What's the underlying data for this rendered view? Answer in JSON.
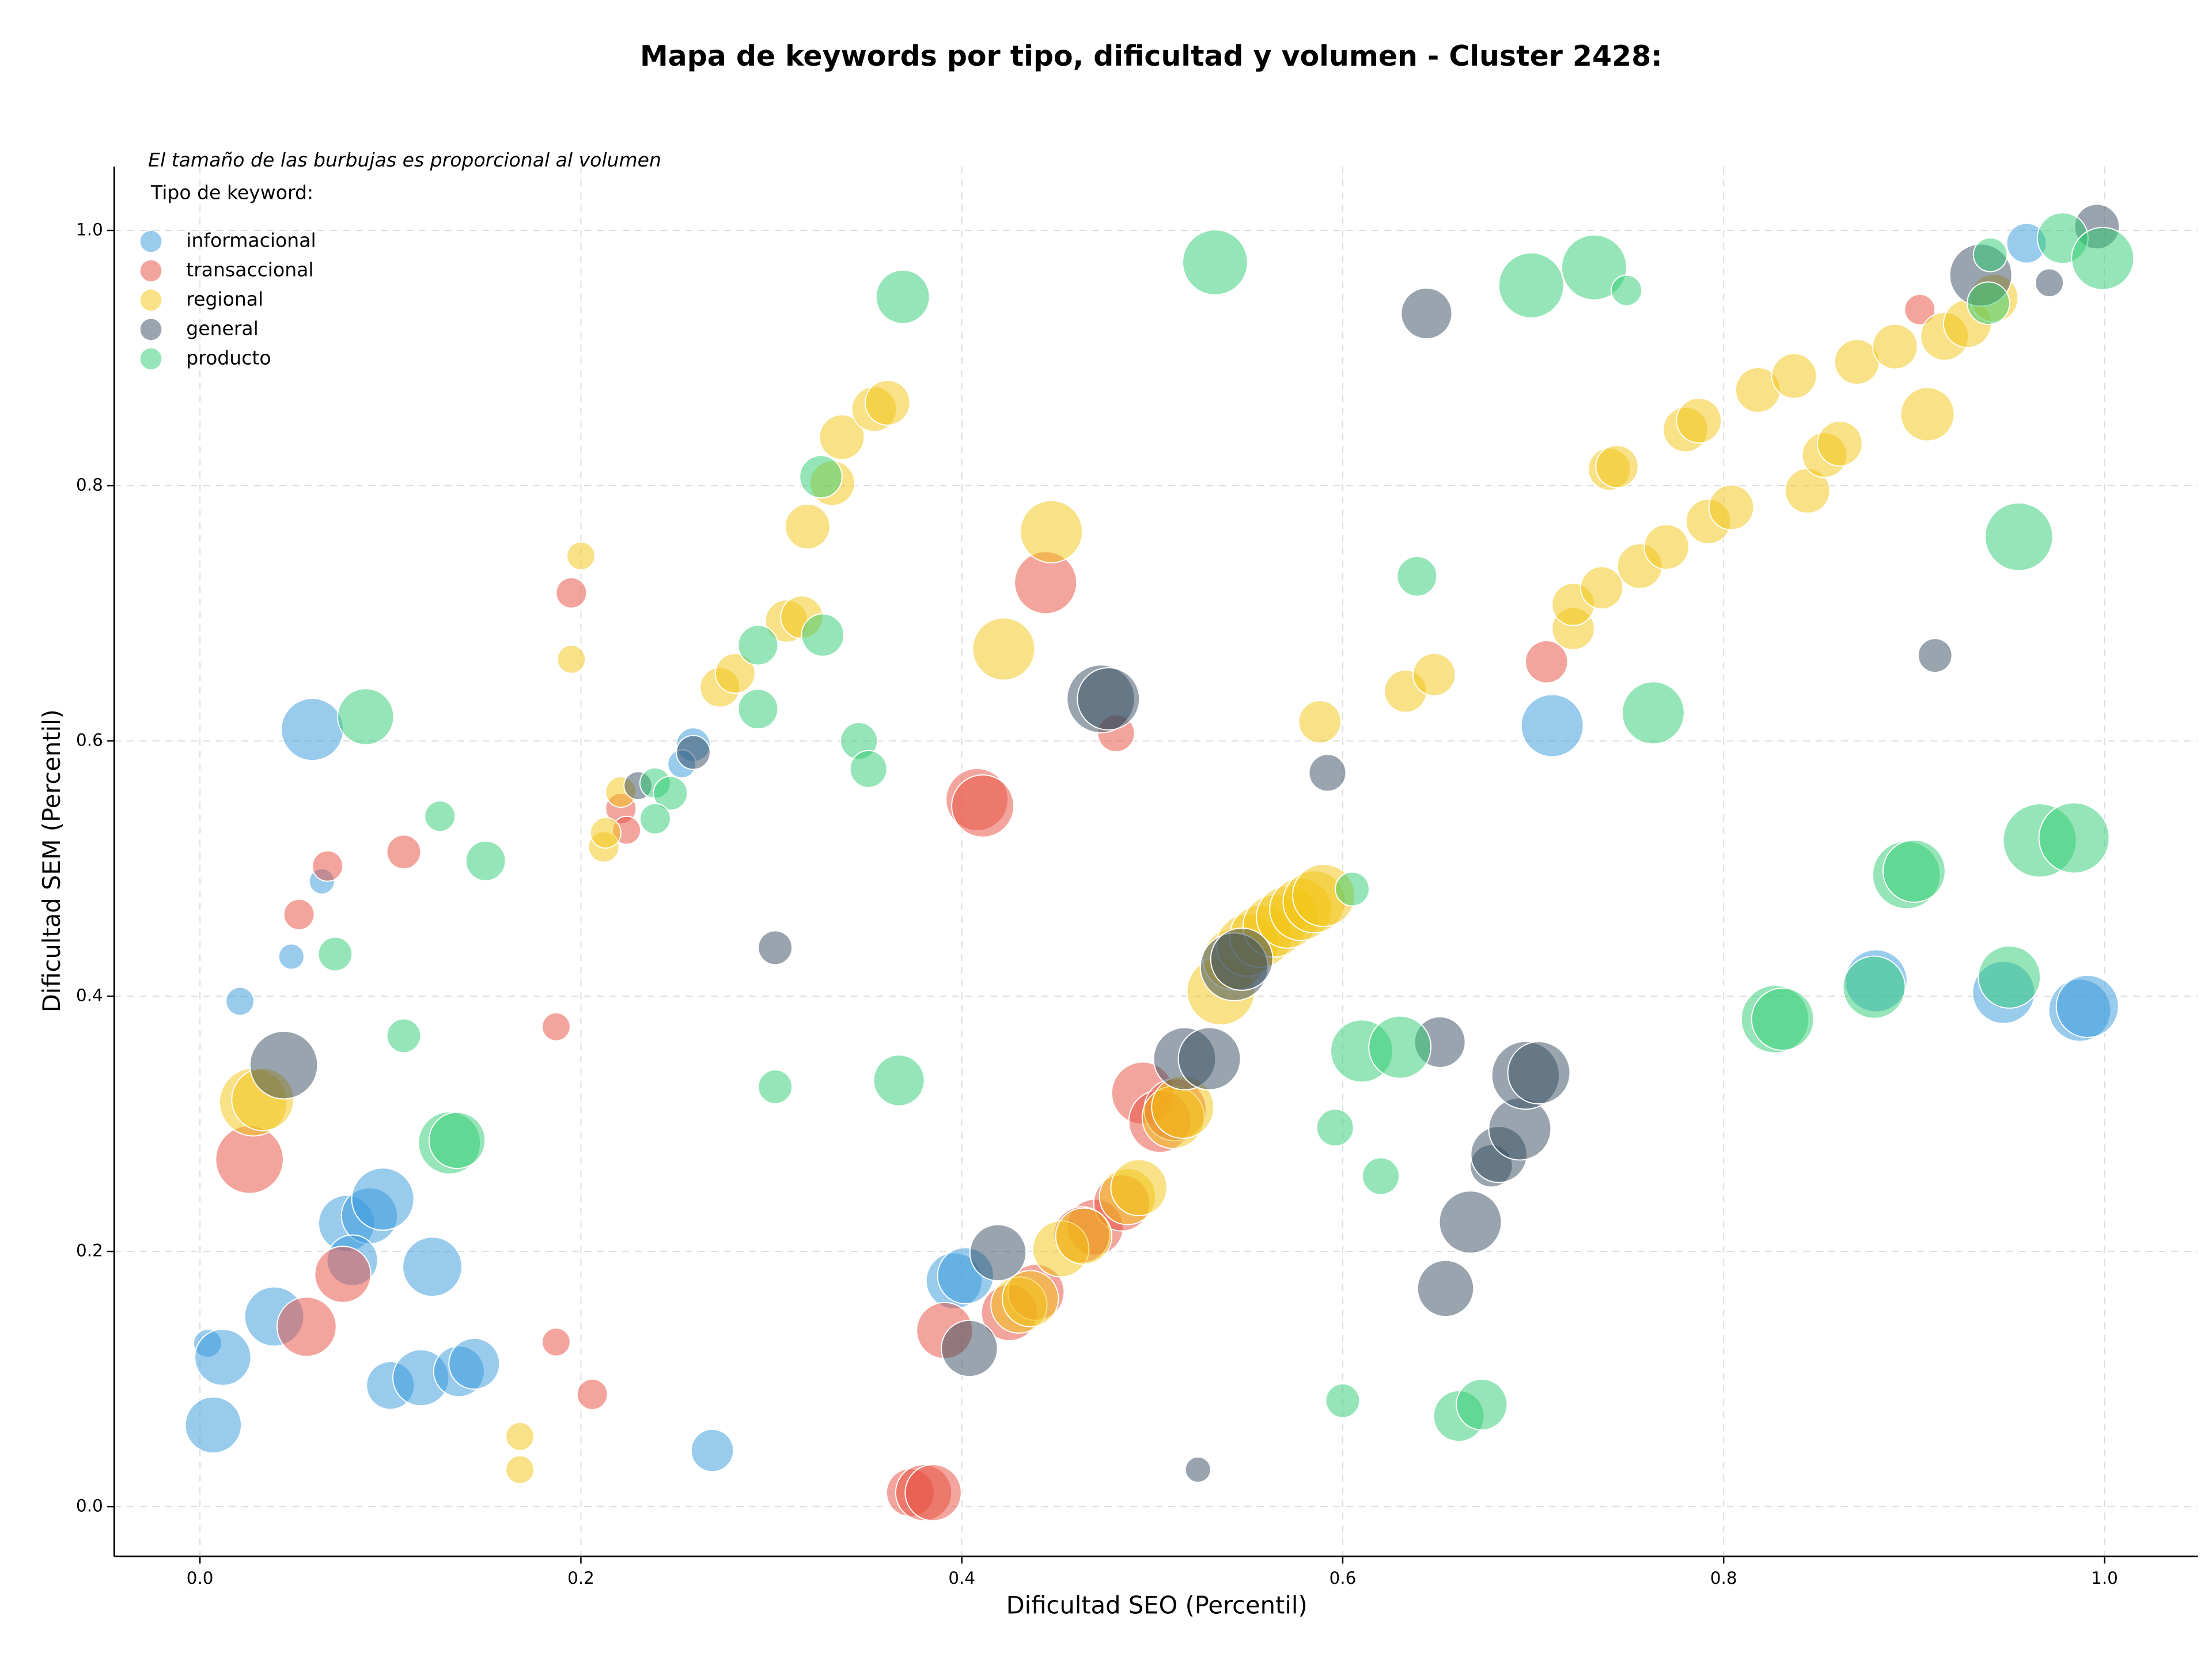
{
  "chart_data": {
    "type": "scatter",
    "title": "Mapa de keywords por tipo, dificultad y volumen - Cluster 2428:",
    "xlabel": "Dificultad SEO (Percentil)",
    "ylabel": "Dificultad SEM (Percentil)",
    "note": "El tamaño de las burbujas es proporcional al volumen",
    "legend_title": "Tipo de keyword:",
    "legend": "upper left",
    "grid": true,
    "xlim": [
      -0.045,
      1.049
    ],
    "ylim": [
      -0.039,
      1.05
    ],
    "xticks": [
      {
        "value": 0,
        "label": "0.0"
      },
      0.2,
      0.4,
      0.6,
      0.8,
      {
        "value": 1,
        "label": "1.0"
      }
    ],
    "yticks": [
      {
        "value": 0,
        "label": "0.0"
      },
      0.2,
      0.4,
      0.6,
      0.8,
      {
        "value": 1,
        "label": "1.0"
      }
    ],
    "series": [
      {
        "name": "informacional",
        "color": "#3498db",
        "x": [
          0.059,
          0.064,
          0.048,
          0.021,
          0.007,
          0.004,
          0.012,
          0.039,
          0.077,
          0.089,
          0.096,
          0.08,
          0.122,
          0.1,
          0.116,
          0.136,
          0.144,
          0.269,
          0.259,
          0.253,
          0.396,
          0.402,
          0.71,
          0.88,
          0.947,
          0.987,
          0.991,
          0.959
        ],
        "values": [
          0.609,
          0.49,
          0.431,
          0.396,
          0.064,
          0.128,
          0.117,
          0.149,
          0.222,
          0.228,
          0.241,
          0.193,
          0.188,
          0.095,
          0.101,
          0.106,
          0.112,
          0.044,
          0.597,
          0.582,
          0.177,
          0.181,
          0.612,
          0.412,
          0.403,
          0.389,
          0.392,
          0.99
        ],
        "sizes": [
          54,
          9,
          9,
          11,
          44,
          11,
          44,
          49,
          44,
          44,
          54,
          36,
          49,
          32,
          44,
          36,
          36,
          25,
          16,
          11,
          44,
          44,
          54,
          54,
          54,
          54,
          54,
          22
        ]
      },
      {
        "name": "transaccional",
        "color": "#e74c3c",
        "x": [
          0.026,
          0.056,
          0.075,
          0.052,
          0.067,
          0.107,
          0.195,
          0.187,
          0.187,
          0.206,
          0.221,
          0.224,
          0.408,
          0.411,
          0.444,
          0.481,
          0.707,
          0.903,
          0.373,
          0.38,
          0.385,
          0.391,
          0.425,
          0.439,
          0.47,
          0.484,
          0.495,
          0.504,
          0.512,
          0.463
        ],
        "values": [
          0.272,
          0.141,
          0.182,
          0.464,
          0.502,
          0.513,
          0.716,
          0.376,
          0.129,
          0.088,
          0.547,
          0.53,
          0.554,
          0.549,
          0.724,
          0.606,
          0.662,
          0.938,
          0.011,
          0.011,
          0.011,
          0.138,
          0.152,
          0.168,
          0.219,
          0.238,
          0.324,
          0.302,
          0.311,
          0.213
        ],
        "sizes": [
          64,
          49,
          44,
          13,
          13,
          16,
          13,
          11,
          11,
          13,
          13,
          11,
          54,
          54,
          54,
          19,
          25,
          13,
          32,
          44,
          44,
          44,
          44,
          44,
          44,
          44,
          54,
          54,
          54,
          44
        ]
      },
      {
        "name": "regional",
        "color": "#f1c40f",
        "x": [
          0.028,
          0.033,
          0.168,
          0.168,
          0.195,
          0.2,
          0.212,
          0.213,
          0.221,
          0.273,
          0.281,
          0.308,
          0.316,
          0.319,
          0.332,
          0.337,
          0.354,
          0.361,
          0.422,
          0.447,
          0.43,
          0.436,
          0.452,
          0.464,
          0.487,
          0.493,
          0.511,
          0.516,
          0.536,
          0.543,
          0.55,
          0.557,
          0.564,
          0.571,
          0.578,
          0.585,
          0.59,
          0.588,
          0.633,
          0.648,
          0.721,
          0.721,
          0.736,
          0.74,
          0.744,
          0.756,
          0.77,
          0.78,
          0.787,
          0.792,
          0.804,
          0.818,
          0.837,
          0.844,
          0.853,
          0.861,
          0.87,
          0.89,
          0.907,
          0.916,
          0.928,
          0.942
        ],
        "values": [
          0.317,
          0.319,
          0.055,
          0.029,
          0.664,
          0.745,
          0.517,
          0.528,
          0.56,
          0.642,
          0.653,
          0.694,
          0.697,
          0.768,
          0.802,
          0.838,
          0.86,
          0.865,
          0.672,
          0.764,
          0.158,
          0.163,
          0.202,
          0.212,
          0.243,
          0.25,
          0.305,
          0.313,
          0.404,
          0.429,
          0.44,
          0.447,
          0.455,
          0.462,
          0.468,
          0.474,
          0.479,
          0.615,
          0.639,
          0.652,
          0.688,
          0.707,
          0.72,
          0.813,
          0.815,
          0.737,
          0.752,
          0.844,
          0.851,
          0.772,
          0.783,
          0.875,
          0.886,
          0.796,
          0.824,
          0.833,
          0.897,
          0.909,
          0.856,
          0.917,
          0.927,
          0.947
        ],
        "sizes": [
          64,
          54,
          11,
          11,
          11,
          11,
          13,
          13,
          13,
          22,
          22,
          25,
          25,
          28,
          28,
          28,
          28,
          28,
          54,
          54,
          44,
          44,
          44,
          44,
          44,
          44,
          54,
          54,
          64,
          54,
          54,
          54,
          54,
          54,
          54,
          54,
          54,
          25,
          25,
          25,
          25,
          25,
          25,
          25,
          25,
          28,
          28,
          28,
          28,
          28,
          28,
          28,
          28,
          28,
          28,
          28,
          28,
          28,
          40,
          32,
          32,
          32
        ]
      },
      {
        "name": "general",
        "color": "#34495e",
        "x": [
          0.044,
          0.259,
          0.23,
          0.302,
          0.419,
          0.404,
          0.473,
          0.477,
          0.524,
          0.517,
          0.53,
          0.543,
          0.547,
          0.592,
          0.644,
          0.651,
          0.654,
          0.667,
          0.678,
          0.682,
          0.693,
          0.696,
          0.703,
          0.911,
          0.935,
          0.971,
          0.996
        ],
        "values": [
          0.346,
          0.591,
          0.565,
          0.438,
          0.199,
          0.124,
          0.633,
          0.633,
          0.029,
          0.351,
          0.351,
          0.423,
          0.429,
          0.575,
          0.935,
          0.364,
          0.171,
          0.223,
          0.267,
          0.276,
          0.296,
          0.338,
          0.34,
          0.667,
          0.965,
          0.959,
          1.003
        ],
        "sizes": [
          64,
          16,
          11,
          16,
          44,
          44,
          64,
          54,
          9,
          54,
          54,
          64,
          54,
          19,
          36,
          36,
          44,
          54,
          25,
          44,
          54,
          64,
          54,
          16,
          54,
          11,
          28
        ]
      },
      {
        "name": "producto",
        "color": "#2ecc71",
        "x": [
          0.087,
          0.071,
          0.107,
          0.126,
          0.15,
          0.131,
          0.135,
          0.239,
          0.247,
          0.239,
          0.293,
          0.293,
          0.302,
          0.326,
          0.327,
          0.346,
          0.351,
          0.369,
          0.367,
          0.533,
          0.6,
          0.596,
          0.605,
          0.61,
          0.63,
          0.62,
          0.639,
          0.661,
          0.673,
          0.699,
          0.732,
          0.749,
          0.763,
          0.827,
          0.831,
          0.879,
          0.896,
          0.9,
          0.95,
          0.955,
          0.966,
          0.984,
          0.978,
          0.999,
          0.939,
          0.94
        ],
        "values": [
          0.619,
          0.433,
          0.369,
          0.541,
          0.506,
          0.285,
          0.287,
          0.567,
          0.559,
          0.539,
          0.675,
          0.625,
          0.329,
          0.807,
          0.683,
          0.6,
          0.578,
          0.948,
          0.334,
          0.975,
          0.083,
          0.297,
          0.484,
          0.357,
          0.36,
          0.259,
          0.729,
          0.071,
          0.08,
          0.957,
          0.971,
          0.953,
          0.622,
          0.382,
          0.382,
          0.407,
          0.495,
          0.498,
          0.415,
          0.76,
          0.522,
          0.524,
          0.994,
          0.978,
          0.943,
          0.981
        ],
        "sizes": [
          44,
          16,
          16,
          13,
          22,
          54,
          44,
          13,
          16,
          13,
          22,
          22,
          16,
          25,
          25,
          19,
          19,
          40,
          36,
          59,
          16,
          19,
          16,
          54,
          54,
          19,
          22,
          36,
          36,
          59,
          59,
          13,
          54,
          64,
          54,
          54,
          64,
          54,
          54,
          64,
          75,
          69,
          36,
          54,
          25,
          16
        ]
      }
    ]
  }
}
